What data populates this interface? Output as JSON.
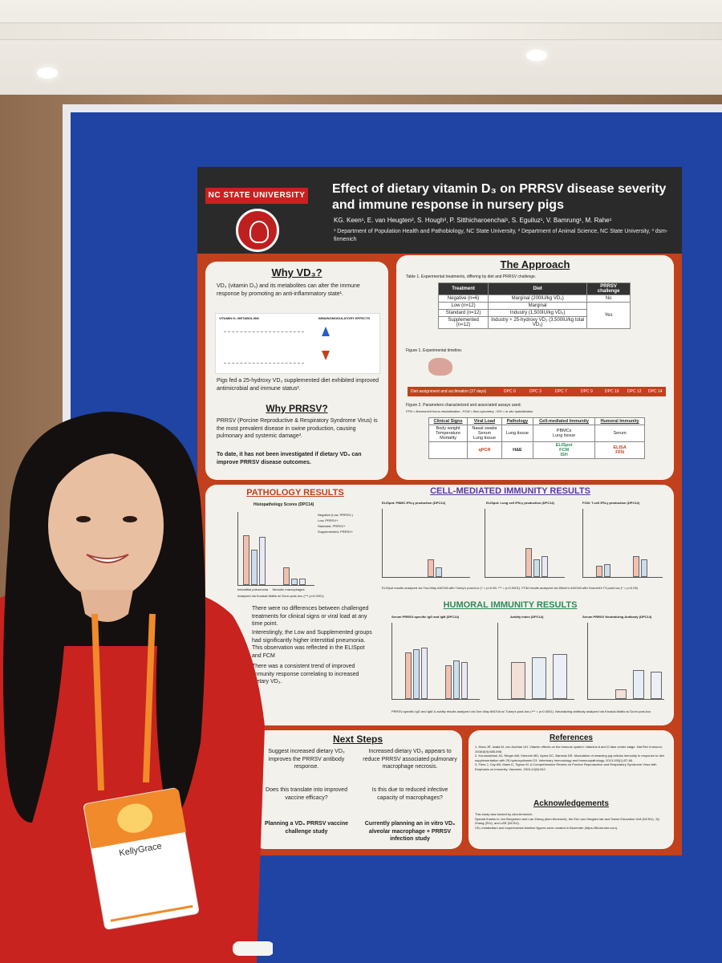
{
  "poster": {
    "university": "NC STATE UNIVERSITY",
    "title": "Effect of dietary vitamin D₃ on PRRSV disease severity and immune response in nursery pigs",
    "authors": "KG. Keen¹, E. van Heugten², S. Hough³, P. Sitthicharoenchai¹, S. Eguiluz¹, V. Bamrung¹, M. Rahe¹",
    "affiliations": "¹ Department of Population Health and Pathobiology, NC State University, ² Department of Animal Science, NC State University, ³ dsm-firmenich",
    "why_vd3": {
      "heading": "Why VD₃?",
      "p1": "VD₃ (vitamin D₃) and its metabolites can alter the immune response by promoting an anti-inflammatory state¹.",
      "fig_left": "VITAMIN D₃ METABOLISM",
      "fig_right": "IMMUNOMODULATORY EFFECTS",
      "p2": "Pigs fed a 25-hydroxy VD₃ supplemented diet exhibited improved antimicrobial and immune status²."
    },
    "why_prrsv": {
      "heading": "Why PRRSV?",
      "p1": "PRRSV (Porcine Reproductive & Respiratory Syndrome Virus) is the most prevalent disease in swine production, causing pulmonary and systemic damage³.",
      "p2": "To date, it has not been investigated if dietary VD₃ can improve PRRSV disease outcomes."
    },
    "approach": {
      "heading": "The Approach",
      "table1_caption": "Table 1. Experimental treatments, differing by diet and PRRSV challenge.",
      "headers": [
        "Treatment",
        "Diet",
        "PRRSV challenge"
      ],
      "rows": [
        [
          "Negative (n=6)",
          "Marginal (200IU/kg VD₃)",
          "No"
        ],
        [
          "Low (n=12)",
          "Marginal",
          ""
        ],
        [
          "Standard (n=12)",
          "Industry (1,500IU/kg VD₃)",
          "Yes"
        ],
        [
          "Supplemented (n=12)",
          "Industry + 25-hydroxy VD₃ (3,500IU/kg total VD₃)",
          ""
        ]
      ],
      "fig1_caption": "Figure 1. Experimental timeline.",
      "timeline": [
        "Diet assignment and acclimation (37 days)",
        "DPC 0",
        "DPC 3",
        "DPC 7",
        "DPC 9",
        "DPC 10",
        "DPC 12",
        "DPC 14"
      ],
      "fig2_caption": "Figure 2. Parameters characterized and associated assays used.",
      "fig2_note": "FFN = fluorescent focus neutralization ; FCM = flow cytometry ; ISH = in situ hybridization",
      "param_heads": [
        "Clinical Signs",
        "Viral Load",
        "Pathology",
        "Cell-mediated Immunity",
        "Humoral Immunity"
      ],
      "param_items": [
        "Body weight\nTemperature\nMortality",
        "Nasal swabs\nSerum\nLung tissue",
        "Lung tissue",
        "PBMCs\nLung tissue",
        "Serum"
      ],
      "param_assays": [
        "",
        "qPCR",
        "H&E",
        "ELISpot\nFCM\nISH",
        "ELISA\nFFN"
      ]
    },
    "pathology": {
      "heading": "PATHOLOGY RESULTS",
      "chart_title": "Histopathology Scores (DPC14)",
      "legend": [
        "Negative (Low, PRRSV-)",
        "Low, PRRSV+",
        "Standard, PRRSV+",
        "Supplemented, PRRSV+"
      ],
      "categories": [
        "Interstitial pneumonia",
        "Necrotic macrophages"
      ],
      "note": "Analyzed via Kruskal-Wallis w/ Dunn post-hoc (*** p<0.0001)",
      "text1": "There were no differences between challenged treatments for clinical signs or viral load at any time point.",
      "text2": "Interestingly, the Low and Supplemented groups had significantly higher interstitial pneumonia. This observation was reflected in the ELISpot and FCM",
      "text3": "There was a consistent trend of improved immunity response correlating to increased dietary VD₃."
    },
    "cmi": {
      "heading": "CELL-MEDIATED IMMUNITY RESULTS",
      "c1": "ELISpot: PBMC IFN-γ production (DPC14)",
      "c2": "ELISpot: Lung cell IFN-γ production (DPC14)",
      "c3": "FCM: T-cell IFN-γ production (DPC14)",
      "note": "ELISpot results analyzed via Two-Way ANOVA with Tukey's post-hoc (* = p<0.05; *** = p<0.0001). FCM results analyzed via Welch's ANOVA with Dunnett's T3 post-hoc (* = p<0.05)"
    },
    "humoral": {
      "heading": "HUMORAL IMMUNITY RESULTS",
      "c1": "Serum PRRSV-specific IgG and IgM (DPC14)",
      "c2": "Avidity Index (DPC14)",
      "c3": "Serum PRRSV Neutralizing Antibody (DPC14)",
      "note": "PRRSV-specific IgG and IgM & avidity results analyzed via One-Way ANOVA w/ Tukey's post-hoc (*** = p<0.0001). Neutralizing antibody analyzed via Kruskal-Wallis w/ Dunn post-hoc"
    },
    "next_steps": {
      "heading": "Next Steps",
      "left1": "Suggest increased dietary VD₃ improves the PRRSV antibody response.",
      "left2": "Does this translate into improved vaccine efficacy?",
      "left3": "Planning a VD₃ PRRSV vaccine challenge study",
      "right1": "Increased dietary VD₃ appears to reduce PRRSV associated pulmonary macrophage necrosis.",
      "right2": "Is this due to reduced infective capacity of macrophages?",
      "right3": "Currently planning an in vitro VD₃ alveolar macrophage + PRRSV infection study"
    },
    "references": {
      "heading": "References",
      "items": [
        "1. Mora JR, Iwata M, von Andrian UH. Vitamin effects on the immune system: vitamins A and D take centre stage. Nat Rev Immunol. 2008;8(9):685-698.",
        "2. Konowalchuk JD, Rieger AM, Kiemele MD, Ayres DC, Barreda DR. Modulation of weanling pig cellular immunity in response to diet supplementation with 25-hydroxyvitamin D3. Veterinary Immunology and Immunopathology. 2013;155(1):57-66.",
        "3. Fiers J, Cay AB, Maes D, Tignon M. A Comprehensive Review on Porcine Reproductive and Respiratory Syndrome Virus with Emphasis on Immunity. Vaccines. 2024;12(8):942."
      ]
    },
    "acknowledgements": {
      "heading": "Acknowledgements",
      "items": [
        "This study was funded by dsm-firmenich.",
        "Special thanks to Jon Bergstrom and Lan Zheng (dsm-firmenich), the Eric van Heugten lab and Swine Education Unit (NCSU), JQ Zhang (ISU), and LAR (NCSU).",
        "VD₃ metabolism and experimental timeline figures were created in Biorender (https://Biorender.com)."
      ]
    }
  },
  "badge": {
    "name": "KellyGrace"
  }
}
